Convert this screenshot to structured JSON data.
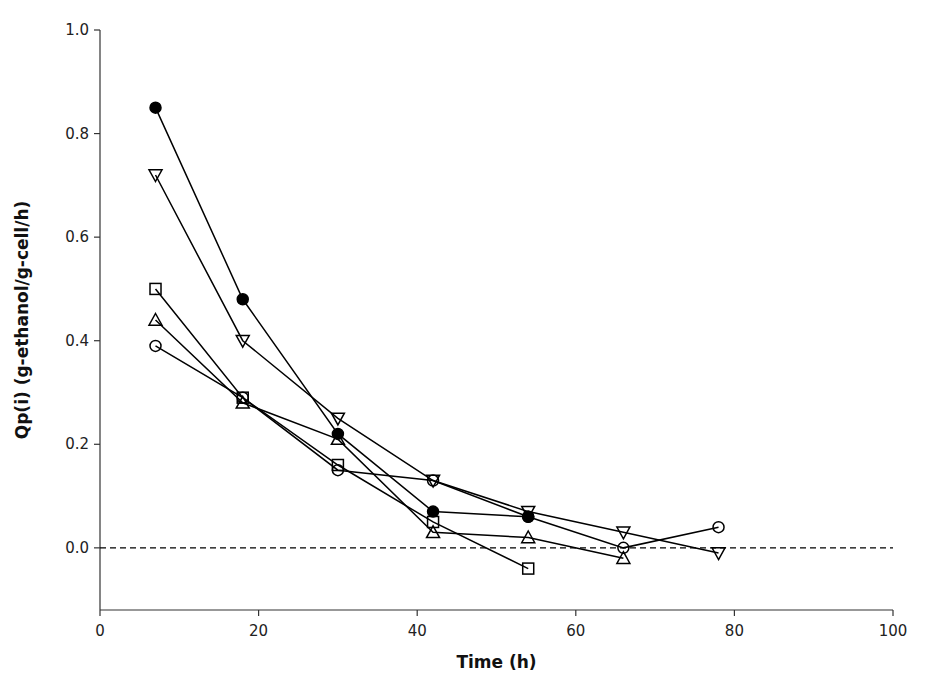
{
  "chart_data": {
    "type": "line",
    "xlabel": "Time (h)",
    "ylabel": "Qp(i) (g-ethanol/g-cell/h)",
    "xlim": [
      0,
      100
    ],
    "ylim": [
      -0.12,
      1.0
    ],
    "xticks": [
      0,
      20,
      40,
      60,
      80,
      100
    ],
    "yticks": [
      {
        "value": 0.0,
        "label": "0.0"
      },
      0.2,
      0.4,
      0.6,
      0.8,
      {
        "value": 1.0,
        "label": "1.0"
      }
    ],
    "grid": false,
    "reference_lines": [
      {
        "y": 0.0,
        "line_style": "dashed"
      }
    ],
    "series": [
      {
        "x": [
          7,
          18,
          30,
          42,
          54
        ],
        "values": [
          0.85,
          0.48,
          0.22,
          0.07,
          0.06
        ],
        "marker": "filled-circle",
        "color": "black"
      },
      {
        "x": [
          7,
          18,
          30,
          42,
          54,
          66,
          78
        ],
        "values": [
          0.72,
          0.4,
          0.25,
          0.13,
          0.07,
          0.03,
          -0.01
        ],
        "marker": "open-triangle-down",
        "color": "black"
      },
      {
        "x": [
          7,
          18,
          30,
          42,
          54
        ],
        "values": [
          0.5,
          0.29,
          0.16,
          0.05,
          -0.04
        ],
        "marker": "open-square",
        "color": "black"
      },
      {
        "x": [
          7,
          18,
          30,
          42,
          54,
          66
        ],
        "values": [
          0.44,
          0.28,
          0.21,
          0.03,
          0.02,
          -0.02
        ],
        "marker": "open-triangle-up",
        "color": "black"
      },
      {
        "x": [
          7,
          18,
          30,
          42,
          54,
          66,
          78
        ],
        "values": [
          0.39,
          0.29,
          0.15,
          0.13,
          0.06,
          0.0,
          0.04
        ],
        "marker": "open-circle",
        "color": "black"
      }
    ]
  }
}
